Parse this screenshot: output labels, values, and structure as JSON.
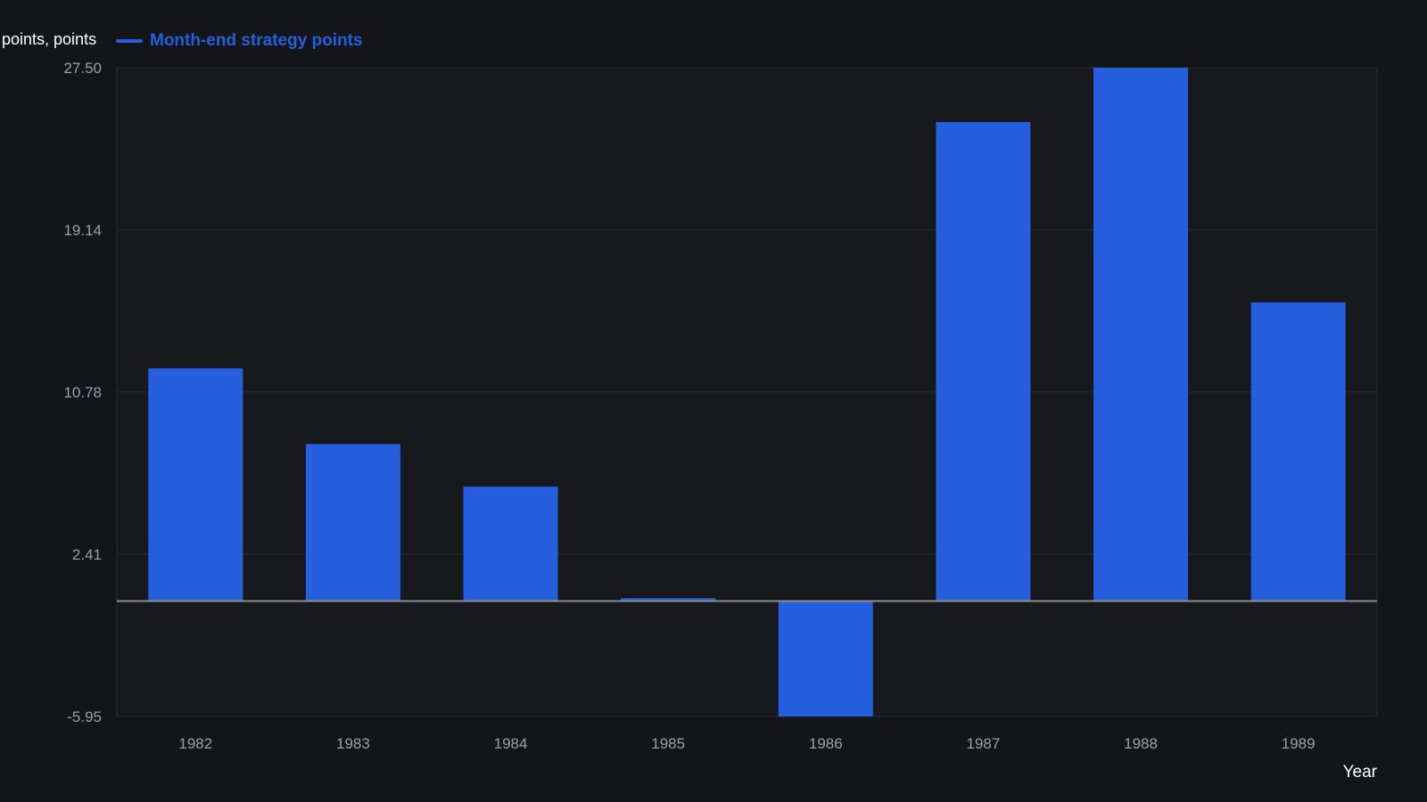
{
  "chart_data": {
    "type": "bar",
    "ylabel": "points, points",
    "xlabel": "Year",
    "categories": [
      "1982",
      "1983",
      "1984",
      "1985",
      "1986",
      "1987",
      "1988",
      "1989"
    ],
    "series": [
      {
        "name": "Month-end strategy points",
        "values": [
          12.0,
          8.1,
          5.9,
          0.15,
          -5.95,
          24.7,
          27.5,
          15.4
        ]
      }
    ],
    "ylim": [
      -5.95,
      27.5
    ],
    "yticks": [
      "27.50",
      "19.14",
      "10.78",
      "2.41",
      "-5.95"
    ],
    "ytick_values": [
      27.5,
      19.14,
      10.78,
      2.41,
      -5.95
    ],
    "grid": true,
    "legend_position": "top-left",
    "colors": {
      "bar": "#255fdd",
      "background": "#131519",
      "plot_background": "#17191d",
      "grid": "#2a2d33",
      "zero_line": "#8a8d93"
    }
  }
}
